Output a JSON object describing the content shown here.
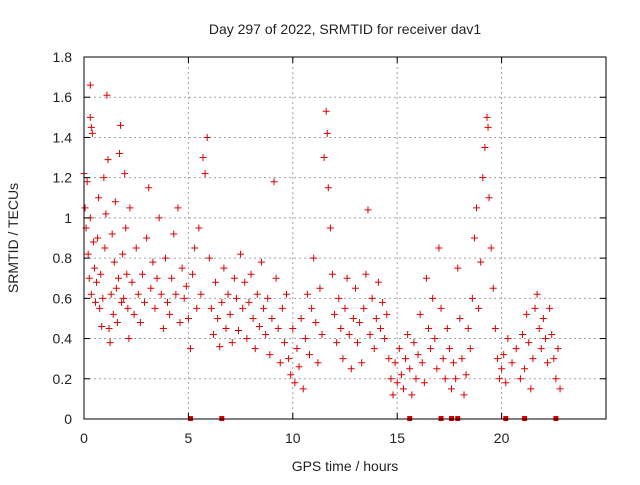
{
  "chart_data": {
    "type": "scatter",
    "title": "Day 297 of 2022, SRMTID for receiver dav1",
    "xlabel": "GPS time / hours",
    "ylabel": "SRMTID / TECUs",
    "xlim": [
      0,
      25
    ],
    "ylim": [
      0,
      1.8
    ],
    "xticks": [
      0,
      5,
      10,
      15,
      20
    ],
    "xtick_labels": [
      "0",
      "5",
      "10",
      "15",
      "20"
    ],
    "yticks": [
      0,
      0.2,
      0.4,
      0.6,
      0.8,
      1,
      1.2,
      1.4,
      1.6,
      1.8
    ],
    "ytick_labels": [
      "0",
      "0.2",
      "0.4",
      "0.6",
      "0.8",
      "1",
      "1.2",
      "1.4",
      "1.6",
      "1.8"
    ],
    "grid": true,
    "marker": "+",
    "marker_color": "#dd0000",
    "series": [
      {
        "name": "dav1",
        "points": [
          [
            0.0,
            1.22
          ],
          [
            0.05,
            1.05
          ],
          [
            0.1,
            0.95
          ],
          [
            0.15,
            1.18
          ],
          [
            0.2,
            0.82
          ],
          [
            0.25,
            0.7
          ],
          [
            0.3,
            1.0
          ],
          [
            0.35,
            0.62
          ],
          [
            0.3,
            1.66
          ],
          [
            0.3,
            1.5
          ],
          [
            0.35,
            1.45
          ],
          [
            0.4,
            1.42
          ],
          [
            0.45,
            0.88
          ],
          [
            0.5,
            0.75
          ],
          [
            0.55,
            0.58
          ],
          [
            0.6,
            0.68
          ],
          [
            0.65,
            0.9
          ],
          [
            0.7,
            1.1
          ],
          [
            0.75,
            0.55
          ],
          [
            0.8,
            0.72
          ],
          [
            0.85,
            0.46
          ],
          [
            0.9,
            0.6
          ],
          [
            0.95,
            1.2
          ],
          [
            1.0,
            0.85
          ],
          [
            1.05,
            1.02
          ],
          [
            1.1,
            1.61
          ],
          [
            1.15,
            1.29
          ],
          [
            1.2,
            0.45
          ],
          [
            1.25,
            0.38
          ],
          [
            1.3,
            0.62
          ],
          [
            1.35,
            0.92
          ],
          [
            1.4,
            0.52
          ],
          [
            1.45,
            0.78
          ],
          [
            1.5,
            1.08
          ],
          [
            1.55,
            0.65
          ],
          [
            1.6,
            0.48
          ],
          [
            1.65,
            0.7
          ],
          [
            1.7,
            1.32
          ],
          [
            1.75,
            1.46
          ],
          [
            1.8,
            0.58
          ],
          [
            1.85,
            0.82
          ],
          [
            1.9,
            0.6
          ],
          [
            1.95,
            1.22
          ],
          [
            2.0,
            0.95
          ],
          [
            2.05,
            0.72
          ],
          [
            2.1,
            0.55
          ],
          [
            2.15,
            0.4
          ],
          [
            2.2,
            1.05
          ],
          [
            2.3,
            0.68
          ],
          [
            2.4,
            0.52
          ],
          [
            2.5,
            0.85
          ],
          [
            2.6,
            0.62
          ],
          [
            2.7,
            0.48
          ],
          [
            2.8,
            0.72
          ],
          [
            2.9,
            0.58
          ],
          [
            3.0,
            0.9
          ],
          [
            3.1,
            1.15
          ],
          [
            3.2,
            0.65
          ],
          [
            3.3,
            0.78
          ],
          [
            3.4,
            0.55
          ],
          [
            3.5,
            0.7
          ],
          [
            3.6,
            1.0
          ],
          [
            3.7,
            0.62
          ],
          [
            3.8,
            0.45
          ],
          [
            3.9,
            0.8
          ],
          [
            4.0,
            0.58
          ],
          [
            4.1,
            0.52
          ],
          [
            4.2,
            0.7
          ],
          [
            4.3,
            0.92
          ],
          [
            4.4,
            0.62
          ],
          [
            4.5,
            1.05
          ],
          [
            4.6,
            0.48
          ],
          [
            4.7,
            0.75
          ],
          [
            4.8,
            0.6
          ],
          [
            4.9,
            0.66
          ],
          [
            5.0,
            0.5
          ],
          [
            5.1,
            0.35
          ],
          [
            5.2,
            0.72
          ],
          [
            5.3,
            0.85
          ],
          [
            5.4,
            0.55
          ],
          [
            5.5,
            0.95
          ],
          [
            5.6,
            0.62
          ],
          [
            5.7,
            1.3
          ],
          [
            5.8,
            1.22
          ],
          [
            5.9,
            1.4
          ],
          [
            6.0,
            0.8
          ],
          [
            6.1,
            0.55
          ],
          [
            6.2,
            0.42
          ],
          [
            6.3,
            0.68
          ],
          [
            6.4,
            0.5
          ],
          [
            6.5,
            0.36
          ],
          [
            6.6,
            0.58
          ],
          [
            6.7,
            0.75
          ],
          [
            6.8,
            0.45
          ],
          [
            6.9,
            0.62
          ],
          [
            7.0,
            0.52
          ],
          [
            7.1,
            0.38
          ],
          [
            7.2,
            0.7
          ],
          [
            7.3,
            0.6
          ],
          [
            7.4,
            0.44
          ],
          [
            7.5,
            0.82
          ],
          [
            7.6,
            0.55
          ],
          [
            7.7,
            0.68
          ],
          [
            7.8,
            0.4
          ],
          [
            7.9,
            0.58
          ],
          [
            8.0,
            0.72
          ],
          [
            8.1,
            0.5
          ],
          [
            8.2,
            0.35
          ],
          [
            8.3,
            0.62
          ],
          [
            8.4,
            0.46
          ],
          [
            8.5,
            0.78
          ],
          [
            8.6,
            0.55
          ],
          [
            8.7,
            0.42
          ],
          [
            8.8,
            0.6
          ],
          [
            8.9,
            0.32
          ],
          [
            9.0,
            0.5
          ],
          [
            9.1,
            1.18
          ],
          [
            9.2,
            0.7
          ],
          [
            9.3,
            0.45
          ],
          [
            9.4,
            0.28
          ],
          [
            9.5,
            0.55
          ],
          [
            9.6,
            0.38
          ],
          [
            9.7,
            0.62
          ],
          [
            9.8,
            0.3
          ],
          [
            9.9,
            0.22
          ],
          [
            10.0,
            0.45
          ],
          [
            10.1,
            0.18
          ],
          [
            10.2,
            0.35
          ],
          [
            10.3,
            0.26
          ],
          [
            10.4,
            0.5
          ],
          [
            10.5,
            0.15
          ],
          [
            10.6,
            0.4
          ],
          [
            10.7,
            0.62
          ],
          [
            10.8,
            0.32
          ],
          [
            10.9,
            0.55
          ],
          [
            11.0,
            0.8
          ],
          [
            11.1,
            0.48
          ],
          [
            11.2,
            0.28
          ],
          [
            11.3,
            0.65
          ],
          [
            11.4,
            0.42
          ],
          [
            11.5,
            1.3
          ],
          [
            11.6,
            1.53
          ],
          [
            11.65,
            1.42
          ],
          [
            11.7,
            1.15
          ],
          [
            11.8,
            0.95
          ],
          [
            11.9,
            0.72
          ],
          [
            12.0,
            0.52
          ],
          [
            12.1,
            0.38
          ],
          [
            12.2,
            0.6
          ],
          [
            12.3,
            0.45
          ],
          [
            12.4,
            0.3
          ],
          [
            12.5,
            0.55
          ],
          [
            12.6,
            0.7
          ],
          [
            12.7,
            0.42
          ],
          [
            12.8,
            0.25
          ],
          [
            12.9,
            0.5
          ],
          [
            13.0,
            0.65
          ],
          [
            13.1,
            0.38
          ],
          [
            13.2,
            0.48
          ],
          [
            13.3,
            0.28
          ],
          [
            13.4,
            0.55
          ],
          [
            13.5,
            0.72
          ],
          [
            13.6,
            1.04
          ],
          [
            13.7,
            0.42
          ],
          [
            13.8,
            0.6
          ],
          [
            13.9,
            0.35
          ],
          [
            14.0,
            0.5
          ],
          [
            14.1,
            0.68
          ],
          [
            14.2,
            0.45
          ],
          [
            14.3,
            0.58
          ],
          [
            14.4,
            0.4
          ],
          [
            14.5,
            0.52
          ],
          [
            14.6,
            0.3
          ],
          [
            14.7,
            0.2
          ],
          [
            14.8,
            0.12
          ],
          [
            14.9,
            0.28
          ],
          [
            15.0,
            0.18
          ],
          [
            15.1,
            0.35
          ],
          [
            15.2,
            0.22
          ],
          [
            15.3,
            0.15
          ],
          [
            15.4,
            0.3
          ],
          [
            15.5,
            0.42
          ],
          [
            15.6,
            0.25
          ],
          [
            15.7,
            0.12
          ],
          [
            15.8,
            0.38
          ],
          [
            15.9,
            0.2
          ],
          [
            16.0,
            0.32
          ],
          [
            16.1,
            0.52
          ],
          [
            16.2,
            0.28
          ],
          [
            16.3,
            0.18
          ],
          [
            16.4,
            0.7
          ],
          [
            16.5,
            0.45
          ],
          [
            16.6,
            0.35
          ],
          [
            16.7,
            0.6
          ],
          [
            16.8,
            0.4
          ],
          [
            16.9,
            0.25
          ],
          [
            17.0,
            0.85
          ],
          [
            17.1,
            0.55
          ],
          [
            17.2,
            0.3
          ],
          [
            17.3,
            0.2
          ],
          [
            17.4,
            0.45
          ],
          [
            17.5,
            0.35
          ],
          [
            17.6,
            0.15
          ],
          [
            17.7,
            0.28
          ],
          [
            17.8,
            0.2
          ],
          [
            17.9,
            0.75
          ],
          [
            18.0,
            0.5
          ],
          [
            18.1,
            0.3
          ],
          [
            18.2,
            0.12
          ],
          [
            18.3,
            0.22
          ],
          [
            18.4,
            0.45
          ],
          [
            18.5,
            0.35
          ],
          [
            18.6,
            0.6
          ],
          [
            18.7,
            0.9
          ],
          [
            18.8,
            1.05
          ],
          [
            18.9,
            0.55
          ],
          [
            19.0,
            0.78
          ],
          [
            19.1,
            1.2
          ],
          [
            19.2,
            1.35
          ],
          [
            19.3,
            1.5
          ],
          [
            19.35,
            1.45
          ],
          [
            19.4,
            1.1
          ],
          [
            19.5,
            0.85
          ],
          [
            19.6,
            0.65
          ],
          [
            19.7,
            0.45
          ],
          [
            19.8,
            0.3
          ],
          [
            19.9,
            0.2
          ],
          [
            20.0,
            0.25
          ],
          [
            20.1,
            0.32
          ],
          [
            20.2,
            0.18
          ],
          [
            20.3,
            0.4
          ],
          [
            20.5,
            0.28
          ],
          [
            20.7,
            0.35
          ],
          [
            20.9,
            0.2
          ],
          [
            21.0,
            0.42
          ],
          [
            21.1,
            0.25
          ],
          [
            21.2,
            0.52
          ],
          [
            21.3,
            0.38
          ],
          [
            21.4,
            0.15
          ],
          [
            21.5,
            0.3
          ],
          [
            21.6,
            0.55
          ],
          [
            21.7,
            0.62
          ],
          [
            21.8,
            0.45
          ],
          [
            21.9,
            0.35
          ],
          [
            22.0,
            0.5
          ],
          [
            22.1,
            0.4
          ],
          [
            22.2,
            0.28
          ],
          [
            22.3,
            0.55
          ],
          [
            22.4,
            0.42
          ],
          [
            22.5,
            0.3
          ],
          [
            22.6,
            0.2
          ],
          [
            22.7,
            0.35
          ],
          [
            22.8,
            0.15
          ]
        ]
      }
    ],
    "zero_markers": [
      5.1,
      6.6,
      15.6,
      17.1,
      17.6,
      17.9,
      20.2,
      21.1,
      22.6
    ]
  }
}
